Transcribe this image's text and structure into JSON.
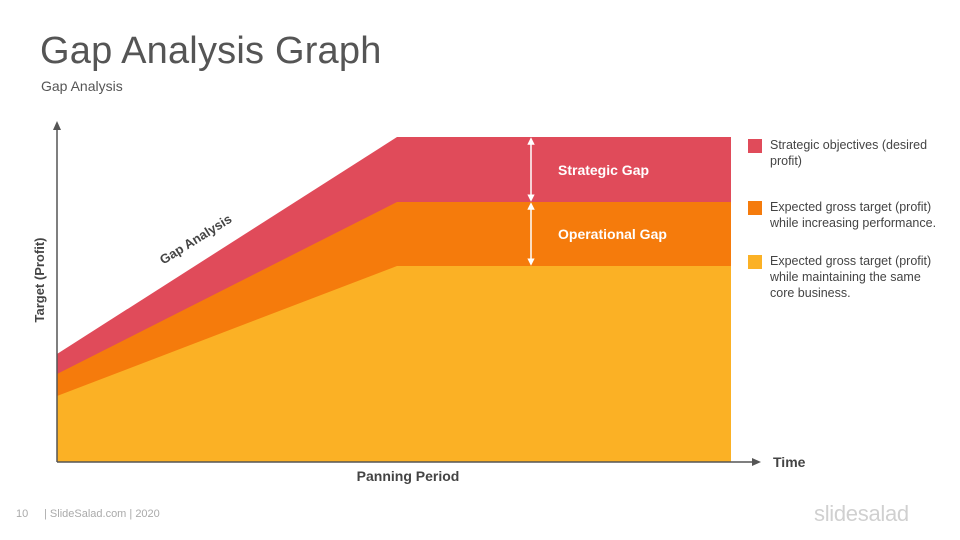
{
  "slide": {
    "title": "Gap Analysis Graph",
    "subtitle": "Gap Analysis",
    "page_number": "10",
    "footer": "| SlideSalad.com | 2020",
    "logo": "slidesalad"
  },
  "diagram": {
    "diagonal_label": "Gap Analysis",
    "y_axis_label": "Target (Profit)",
    "x_axis_label": "Panning Period",
    "x_axis_end_label": "Time",
    "gaps": [
      {
        "label": "Strategic Gap"
      },
      {
        "label": "Operational Gap"
      }
    ],
    "colors": {
      "strategic": "#e04b5a",
      "operational": "#f57b0c",
      "core": "#fbb125",
      "axis": "#555555"
    }
  },
  "legend": [
    {
      "text": "Strategic objectives (desired profit)",
      "color": "#e04b5a"
    },
    {
      "text": "Expected gross target (profit) while increasing performance.",
      "color": "#f57b0c"
    },
    {
      "text": "Expected gross target (profit) while maintaining the same core business.",
      "color": "#fbb125"
    }
  ]
}
